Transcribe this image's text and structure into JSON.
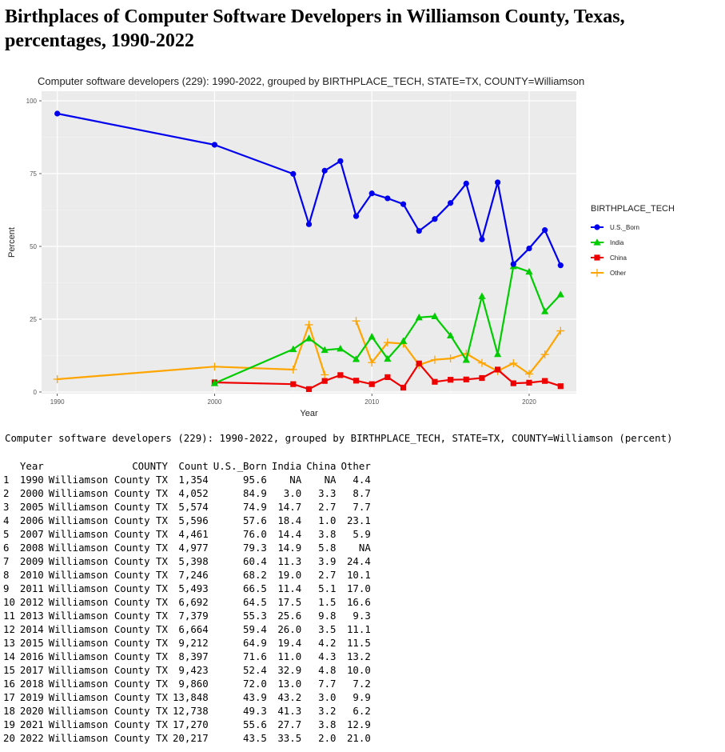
{
  "heading": "Birthplaces of Computer Software Developers in Williamson County, Texas, percentages, 1990-2022",
  "caption": "Computer software developers (229): 1990-2022, grouped by BIRTHPLACE_TECH, STATE=TX, COUNTY=Williamson (percent)",
  "chart_data": {
    "type": "line",
    "title": "Computer software developers (229): 1990-2022, grouped by BIRTHPLACE_TECH, STATE=TX, COUNTY=Williamson",
    "xlabel": "Year",
    "ylabel": "Percent",
    "xlim": [
      1989,
      2023
    ],
    "ylim": [
      0,
      100
    ],
    "x_ticks": [
      1990,
      2000,
      2010,
      2020
    ],
    "y_ticks": [
      0,
      25,
      50,
      75,
      100
    ],
    "grid": true,
    "legend_title": "BIRTHPLACE_TECH",
    "legend_position": "right",
    "x": [
      1990,
      2000,
      2005,
      2006,
      2007,
      2008,
      2009,
      2010,
      2011,
      2012,
      2013,
      2014,
      2015,
      2016,
      2017,
      2018,
      2019,
      2020,
      2021,
      2022
    ],
    "series": [
      {
        "name": "U.S._Born",
        "color": "#0000ee",
        "marker": "circle",
        "values": [
          95.6,
          84.9,
          74.9,
          57.6,
          76.0,
          79.3,
          60.4,
          68.2,
          66.5,
          64.5,
          55.3,
          59.4,
          64.9,
          71.6,
          52.4,
          72.0,
          43.9,
          49.3,
          55.6,
          43.5
        ]
      },
      {
        "name": "India",
        "color": "#00cc00",
        "marker": "triangle",
        "values": [
          null,
          3.0,
          14.7,
          18.4,
          14.4,
          14.9,
          11.3,
          19.0,
          11.4,
          17.5,
          25.6,
          26.0,
          19.4,
          11.0,
          32.9,
          13.0,
          43.2,
          41.3,
          27.7,
          33.5
        ]
      },
      {
        "name": "China",
        "color": "#ee0000",
        "marker": "square",
        "values": [
          null,
          3.3,
          2.7,
          1.0,
          3.8,
          5.8,
          3.9,
          2.7,
          5.1,
          1.5,
          9.8,
          3.5,
          4.2,
          4.3,
          4.8,
          7.7,
          3.0,
          3.2,
          3.8,
          2.0
        ]
      },
      {
        "name": "Other",
        "color": "#ffa500",
        "marker": "plus",
        "values": [
          4.4,
          8.7,
          7.7,
          23.1,
          5.9,
          null,
          24.4,
          10.1,
          17.0,
          16.6,
          9.3,
          11.1,
          11.5,
          13.2,
          10.0,
          7.2,
          9.9,
          6.2,
          12.9,
          21.0
        ]
      }
    ]
  },
  "table": {
    "columns": [
      "Year",
      "COUNTY",
      "Count",
      "U.S._Born",
      "India",
      "China",
      "Other"
    ],
    "rows": [
      [
        "1",
        "1990",
        "Williamson County TX",
        "1,354",
        "95.6",
        "NA",
        "NA",
        "4.4"
      ],
      [
        "2",
        "2000",
        "Williamson County TX",
        "4,052",
        "84.9",
        "3.0",
        "3.3",
        "8.7"
      ],
      [
        "3",
        "2005",
        "Williamson County TX",
        "5,574",
        "74.9",
        "14.7",
        "2.7",
        "7.7"
      ],
      [
        "4",
        "2006",
        "Williamson County TX",
        "5,596",
        "57.6",
        "18.4",
        "1.0",
        "23.1"
      ],
      [
        "5",
        "2007",
        "Williamson County TX",
        "4,461",
        "76.0",
        "14.4",
        "3.8",
        "5.9"
      ],
      [
        "6",
        "2008",
        "Williamson County TX",
        "4,977",
        "79.3",
        "14.9",
        "5.8",
        "NA"
      ],
      [
        "7",
        "2009",
        "Williamson County TX",
        "5,398",
        "60.4",
        "11.3",
        "3.9",
        "24.4"
      ],
      [
        "8",
        "2010",
        "Williamson County TX",
        "7,246",
        "68.2",
        "19.0",
        "2.7",
        "10.1"
      ],
      [
        "9",
        "2011",
        "Williamson County TX",
        "5,493",
        "66.5",
        "11.4",
        "5.1",
        "17.0"
      ],
      [
        "10",
        "2012",
        "Williamson County TX",
        "6,692",
        "64.5",
        "17.5",
        "1.5",
        "16.6"
      ],
      [
        "11",
        "2013",
        "Williamson County TX",
        "7,379",
        "55.3",
        "25.6",
        "9.8",
        "9.3"
      ],
      [
        "12",
        "2014",
        "Williamson County TX",
        "6,664",
        "59.4",
        "26.0",
        "3.5",
        "11.1"
      ],
      [
        "13",
        "2015",
        "Williamson County TX",
        "9,212",
        "64.9",
        "19.4",
        "4.2",
        "11.5"
      ],
      [
        "14",
        "2016",
        "Williamson County TX",
        "8,397",
        "71.6",
        "11.0",
        "4.3",
        "13.2"
      ],
      [
        "15",
        "2017",
        "Williamson County TX",
        "9,423",
        "52.4",
        "32.9",
        "4.8",
        "10.0"
      ],
      [
        "16",
        "2018",
        "Williamson County TX",
        "9,860",
        "72.0",
        "13.0",
        "7.7",
        "7.2"
      ],
      [
        "17",
        "2019",
        "Williamson County TX",
        "13,848",
        "43.9",
        "43.2",
        "3.0",
        "9.9"
      ],
      [
        "18",
        "2020",
        "Williamson County TX",
        "12,738",
        "49.3",
        "41.3",
        "3.2",
        "6.2"
      ],
      [
        "19",
        "2021",
        "Williamson County TX",
        "17,270",
        "55.6",
        "27.7",
        "3.8",
        "12.9"
      ],
      [
        "20",
        "2022",
        "Williamson County TX",
        "20,217",
        "43.5",
        "33.5",
        "2.0",
        "21.0"
      ]
    ]
  }
}
